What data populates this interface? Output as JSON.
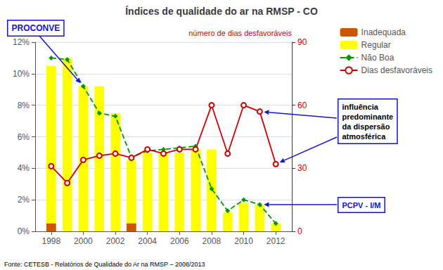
{
  "chart_data": {
    "type": "bar",
    "title": "Índices de qualidade do ar na RMSP - CO",
    "x": [
      1998,
      1999,
      2000,
      2001,
      2002,
      2003,
      2004,
      2005,
      2006,
      2007,
      2008,
      2009,
      2010,
      2011,
      2012
    ],
    "xlim": [
      1997,
      2013
    ],
    "xticks": [
      1998,
      2000,
      2002,
      2004,
      2006,
      2008,
      2010,
      2012
    ],
    "ylim": [
      0,
      12
    ],
    "yticks": [
      {
        "value": 0,
        "label": "0%"
      },
      {
        "value": 2,
        "label": "2%"
      },
      {
        "value": 4,
        "label": "4%"
      },
      {
        "value": 6,
        "label": "6%"
      },
      {
        "value": 8,
        "label": "8%"
      },
      {
        "value": 10,
        "label": "10%"
      },
      {
        "value": 12,
        "label": "12%"
      }
    ],
    "y2lim": [
      0,
      90
    ],
    "y2ticks": [
      0,
      30,
      60,
      90
    ],
    "y2label": "número de dias desfavoráveis",
    "stacked": true,
    "grid": true,
    "legend": "upper right",
    "series": [
      {
        "name": "Inadequada",
        "type": "bar",
        "color": "#CC5500",
        "values": [
          0.5,
          0.0,
          0.0,
          0.0,
          0.0,
          0.5,
          0.0,
          0.0,
          0.0,
          0.0,
          0.0,
          0.0,
          0.0,
          0.0,
          0.0
        ]
      },
      {
        "name": "Regular",
        "type": "bar",
        "color": "#FFFF00",
        "values": [
          10.5,
          11.0,
          9.2,
          9.2,
          7.5,
          4.5,
          5.0,
          5.0,
          5.0,
          5.2,
          5.2,
          1.2,
          1.8,
          1.7,
          0.5
        ]
      },
      {
        "name": "Não Boa",
        "type": "line",
        "color": "#009900",
        "line_style": "dashed",
        "marker": "diamond",
        "values": [
          11.0,
          10.9,
          9.2,
          7.5,
          7.3,
          4.7,
          5.1,
          5.2,
          5.3,
          5.4,
          2.7,
          1.3,
          2.0,
          1.7,
          0.5
        ]
      },
      {
        "name": "Dias desfavoráveis",
        "type": "line",
        "axis": "y2",
        "color": "#CC0000",
        "line_style": "solid",
        "marker": "circle",
        "values": [
          31,
          23,
          34,
          36,
          37,
          35,
          39,
          37,
          39,
          39,
          60,
          37,
          60,
          57,
          32
        ]
      }
    ],
    "annotations": [
      "PROCONVE",
      "influência\npredominante\nda dispersão\natmosférica",
      "PCPV - I/M",
      "Fonte: CETESB - Relatórios de Qualidade do Ar na RMSP – 2008/2013"
    ]
  }
}
